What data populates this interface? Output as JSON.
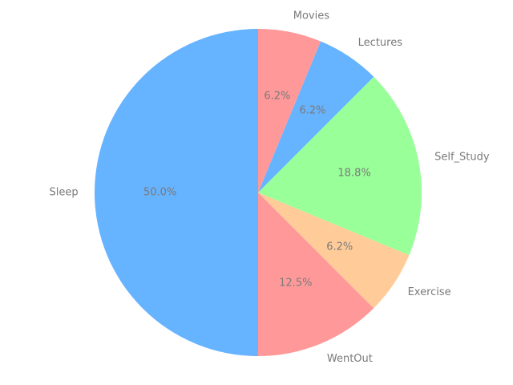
{
  "chart_data": {
    "type": "pie",
    "title": "",
    "start_angle_deg": 90,
    "direction": "counterclockwise",
    "slices": [
      {
        "label": "Sleep",
        "value": 50.0,
        "pct_label": "50.0%",
        "color": "#66b3ff"
      },
      {
        "label": "WentOut",
        "value": 12.5,
        "pct_label": "12.5%",
        "color": "#ff9999"
      },
      {
        "label": "Exercise",
        "value": 6.25,
        "pct_label": "6.2%",
        "color": "#ffcc99"
      },
      {
        "label": "Self_Study",
        "value": 18.75,
        "pct_label": "18.8%",
        "color": "#99ff99"
      },
      {
        "label": "Lectures",
        "value": 6.25,
        "pct_label": "6.2%",
        "color": "#66b3ff"
      },
      {
        "label": "Movies",
        "value": 6.25,
        "pct_label": "6.2%",
        "color": "#ff9999"
      }
    ],
    "label_color": "#7a7a7a",
    "legend": "none",
    "grid": false
  }
}
